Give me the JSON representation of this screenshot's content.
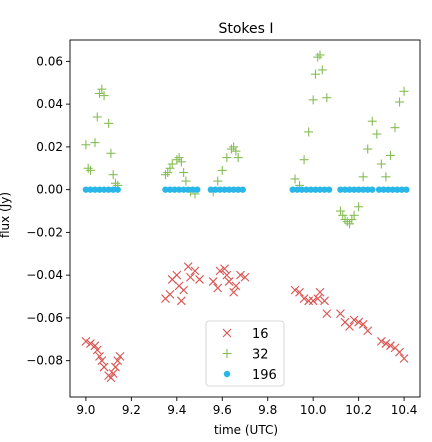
{
  "chart_data": {
    "type": "scatter",
    "title": "Stokes I",
    "xlabel": "time (UTC)",
    "ylabel": "flux (Jy)",
    "xlim": [
      8.93,
      10.47
    ],
    "ylim": [
      -0.097,
      0.07
    ],
    "xticks": [
      9.0,
      9.2,
      9.4,
      9.6,
      9.8,
      10.0,
      10.2,
      10.4
    ],
    "xtick_labels": [
      "9.0",
      "9.2",
      "9.4",
      "9.6",
      "9.8",
      "10.0",
      "10.2",
      "10.4"
    ],
    "yticks": [
      -0.08,
      -0.06,
      -0.04,
      -0.02,
      0.0,
      0.02,
      0.04,
      0.06
    ],
    "ytick_labels": [
      "−0.08",
      "−0.06",
      "−0.04",
      "−0.02",
      "0.00",
      "0.02",
      "0.04",
      "0.06"
    ],
    "grid": false,
    "legend_position": "lower-center",
    "series": [
      {
        "name": "16",
        "marker": "x",
        "color": "#d9534f",
        "points": [
          [
            9.0,
            -0.071
          ],
          [
            9.02,
            -0.072
          ],
          [
            9.04,
            -0.073
          ],
          [
            9.05,
            -0.075
          ],
          [
            9.06,
            -0.078
          ],
          [
            9.07,
            -0.08
          ],
          [
            9.08,
            -0.083
          ],
          [
            9.1,
            -0.087
          ],
          [
            9.11,
            -0.088
          ],
          [
            9.12,
            -0.086
          ],
          [
            9.13,
            -0.083
          ],
          [
            9.14,
            -0.08
          ],
          [
            9.15,
            -0.078
          ],
          [
            9.35,
            -0.051
          ],
          [
            9.37,
            -0.049
          ],
          [
            9.38,
            -0.042
          ],
          [
            9.4,
            -0.04
          ],
          [
            9.41,
            -0.045
          ],
          [
            9.42,
            -0.052
          ],
          [
            9.43,
            -0.047
          ],
          [
            9.45,
            -0.036
          ],
          [
            9.46,
            -0.041
          ],
          [
            9.48,
            -0.038
          ],
          [
            9.5,
            -0.042
          ],
          [
            9.56,
            -0.043
          ],
          [
            9.58,
            -0.046
          ],
          [
            9.59,
            -0.038
          ],
          [
            9.61,
            -0.037
          ],
          [
            9.62,
            -0.04
          ],
          [
            9.63,
            -0.043
          ],
          [
            9.65,
            -0.048
          ],
          [
            9.66,
            -0.045
          ],
          [
            9.68,
            -0.04
          ],
          [
            9.7,
            -0.041
          ],
          [
            9.92,
            -0.047
          ],
          [
            9.94,
            -0.048
          ],
          [
            9.96,
            -0.051
          ],
          [
            9.98,
            -0.052
          ],
          [
            10.0,
            -0.052
          ],
          [
            10.02,
            -0.051
          ],
          [
            10.03,
            -0.048
          ],
          [
            10.05,
            -0.052
          ],
          [
            10.06,
            -0.058
          ],
          [
            10.12,
            -0.058
          ],
          [
            10.14,
            -0.062
          ],
          [
            10.16,
            -0.064
          ],
          [
            10.18,
            -0.061
          ],
          [
            10.2,
            -0.062
          ],
          [
            10.22,
            -0.063
          ],
          [
            10.24,
            -0.066
          ],
          [
            10.3,
            -0.071
          ],
          [
            10.32,
            -0.072
          ],
          [
            10.34,
            -0.073
          ],
          [
            10.36,
            -0.074
          ],
          [
            10.38,
            -0.076
          ],
          [
            10.4,
            -0.079
          ]
        ]
      },
      {
        "name": "32",
        "marker": "+",
        "color": "#86bd55",
        "points": [
          [
            9.0,
            0.021
          ],
          [
            9.01,
            0.01
          ],
          [
            9.02,
            0.009
          ],
          [
            9.04,
            0.022
          ],
          [
            9.05,
            0.034
          ],
          [
            9.06,
            0.045
          ],
          [
            9.07,
            0.047
          ],
          [
            9.08,
            0.044
          ],
          [
            9.1,
            0.031
          ],
          [
            9.11,
            0.017
          ],
          [
            9.12,
            0.007
          ],
          [
            9.13,
            0.003
          ],
          [
            9.14,
            0.002
          ],
          [
            9.35,
            0.007
          ],
          [
            9.36,
            0.008
          ],
          [
            9.37,
            0.01
          ],
          [
            9.38,
            0.012
          ],
          [
            9.4,
            0.014
          ],
          [
            9.41,
            0.015
          ],
          [
            9.42,
            0.013
          ],
          [
            9.43,
            0.008
          ],
          [
            9.44,
            0.004
          ],
          [
            9.46,
            -0.001
          ],
          [
            9.48,
            -0.002
          ],
          [
            9.56,
            -0.001
          ],
          [
            9.58,
            0.004
          ],
          [
            9.6,
            0.009
          ],
          [
            9.62,
            0.015
          ],
          [
            9.64,
            0.019
          ],
          [
            9.65,
            0.02
          ],
          [
            9.66,
            0.018
          ],
          [
            9.67,
            0.015
          ],
          [
            9.92,
            0.005
          ],
          [
            9.94,
            0.002
          ],
          [
            9.96,
            0.014
          ],
          [
            9.98,
            0.027
          ],
          [
            10.0,
            0.042
          ],
          [
            10.01,
            0.054
          ],
          [
            10.02,
            0.062
          ],
          [
            10.03,
            0.063
          ],
          [
            10.04,
            0.056
          ],
          [
            10.06,
            0.043
          ],
          [
            10.12,
            -0.01
          ],
          [
            10.13,
            -0.012
          ],
          [
            10.14,
            -0.014
          ],
          [
            10.15,
            -0.015
          ],
          [
            10.16,
            -0.016
          ],
          [
            10.17,
            -0.014
          ],
          [
            10.18,
            -0.012
          ],
          [
            10.2,
            -0.008
          ],
          [
            10.22,
            0.006
          ],
          [
            10.24,
            0.019
          ],
          [
            10.26,
            0.032
          ],
          [
            10.28,
            0.026
          ],
          [
            10.3,
            0.012
          ],
          [
            10.32,
            0.006
          ],
          [
            10.34,
            0.016
          ],
          [
            10.36,
            0.029
          ],
          [
            10.38,
            0.041
          ],
          [
            10.4,
            0.046
          ]
        ]
      },
      {
        "name": "196",
        "marker": "o",
        "color": "#29b6e8",
        "points": [
          [
            9.0,
            0.0
          ],
          [
            9.02,
            0.0
          ],
          [
            9.04,
            0.0
          ],
          [
            9.06,
            0.0
          ],
          [
            9.08,
            0.0
          ],
          [
            9.1,
            0.0
          ],
          [
            9.12,
            0.0
          ],
          [
            9.14,
            0.0
          ],
          [
            9.35,
            0.0
          ],
          [
            9.37,
            0.0
          ],
          [
            9.39,
            0.0
          ],
          [
            9.41,
            0.0
          ],
          [
            9.43,
            0.0
          ],
          [
            9.45,
            0.0
          ],
          [
            9.47,
            0.0
          ],
          [
            9.49,
            0.0
          ],
          [
            9.55,
            0.0
          ],
          [
            9.57,
            0.0
          ],
          [
            9.59,
            0.0
          ],
          [
            9.61,
            0.0
          ],
          [
            9.63,
            0.0
          ],
          [
            9.65,
            0.0
          ],
          [
            9.67,
            0.0
          ],
          [
            9.69,
            0.0
          ],
          [
            9.91,
            0.0
          ],
          [
            9.93,
            0.0
          ],
          [
            9.95,
            0.0
          ],
          [
            9.97,
            0.0
          ],
          [
            9.99,
            0.0
          ],
          [
            10.01,
            0.0
          ],
          [
            10.03,
            0.0
          ],
          [
            10.05,
            0.0
          ],
          [
            10.07,
            0.0
          ],
          [
            10.12,
            0.0
          ],
          [
            10.14,
            0.0
          ],
          [
            10.16,
            0.0
          ],
          [
            10.18,
            0.0
          ],
          [
            10.2,
            0.0
          ],
          [
            10.22,
            0.0
          ],
          [
            10.24,
            0.0
          ],
          [
            10.26,
            0.0
          ],
          [
            10.29,
            0.0
          ],
          [
            10.31,
            0.0
          ],
          [
            10.33,
            0.0
          ],
          [
            10.35,
            0.0
          ],
          [
            10.37,
            0.0
          ],
          [
            10.39,
            0.0
          ],
          [
            10.41,
            0.0
          ]
        ]
      }
    ]
  }
}
